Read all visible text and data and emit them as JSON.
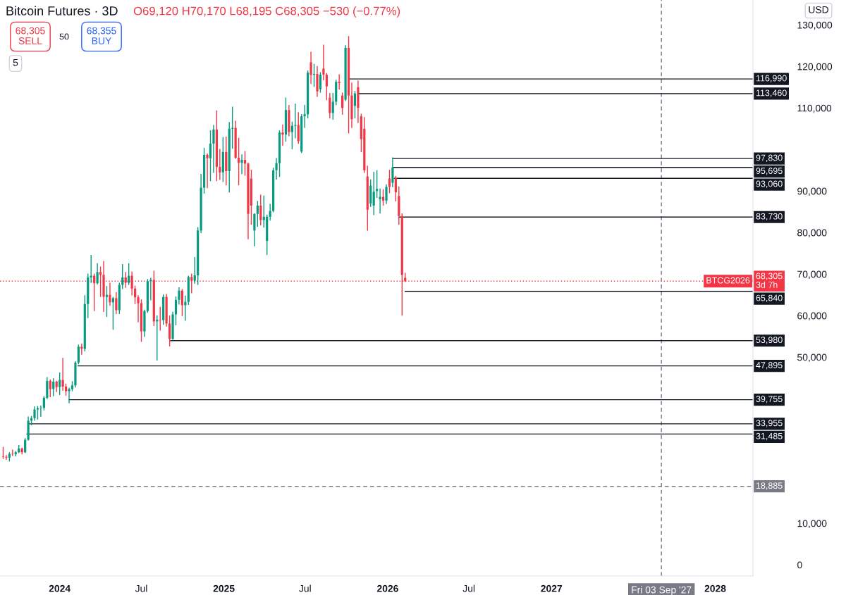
{
  "chart_data": {
    "type": "candlestick",
    "title": "Bitcoin Futures · 3D",
    "subtitle": "O69,120 H70,170 L68,195 C68,305 −530 (−0.77%)",
    "xlim": [
      "2023-08-21",
      "2028-03-25"
    ],
    "xticks": [
      {
        "value": "2024-01-01",
        "label": "2024"
      },
      {
        "value": "2024-07-01",
        "label": "Jul"
      },
      {
        "value": "2025-01-01",
        "label": "2025"
      },
      {
        "value": "2025-07-01",
        "label": "Jul"
      },
      {
        "value": "2026-01-01",
        "label": "2026"
      },
      {
        "value": "2026-07-01",
        "label": "Jul"
      },
      {
        "value": "2027-01-01",
        "label": "2027"
      },
      {
        "value": "2028-01-01",
        "label": "2028"
      }
    ],
    "ylim": [
      -2700,
      136000
    ],
    "yticks": [
      0,
      {
        "value": 10000,
        "label": "10,000"
      },
      {
        "value": 50000,
        "label": "50,000"
      },
      {
        "value": 60000,
        "label": "60,000"
      },
      {
        "value": 70000,
        "label": "70,000"
      },
      {
        "value": 80000,
        "label": "80,000"
      },
      {
        "value": 90000,
        "label": "90,000"
      },
      {
        "value": 110000,
        "label": "110,000"
      },
      {
        "value": 120000,
        "label": "120,000"
      },
      {
        "value": 130000,
        "label": "130,000"
      }
    ],
    "series": [
      {
        "x": [
          "2023-08-28",
          "2023-09-04",
          "2023-09-11",
          "2023-09-18",
          "2023-09-25",
          "2023-10-02",
          "2023-10-09",
          "2023-10-16",
          "2023-10-23",
          "2023-10-30",
          "2023-11-06",
          "2023-11-13",
          "2023-11-20",
          "2023-11-27",
          "2023-12-04",
          "2023-12-11",
          "2023-12-18",
          "2023-12-25",
          "2024-01-01",
          "2024-01-08",
          "2024-01-15",
          "2024-01-22",
          "2024-01-29",
          "2024-02-05",
          "2024-02-12",
          "2024-02-19",
          "2024-02-26",
          "2024-03-04",
          "2024-03-11",
          "2024-03-18",
          "2024-03-25",
          "2024-04-01",
          "2024-04-08",
          "2024-04-15",
          "2024-04-22",
          "2024-04-29",
          "2024-05-06",
          "2024-05-13",
          "2024-05-20",
          "2024-05-27",
          "2024-06-03",
          "2024-06-10",
          "2024-06-17",
          "2024-06-24",
          "2024-07-01",
          "2024-07-08",
          "2024-07-15",
          "2024-07-22",
          "2024-07-29",
          "2024-08-05",
          "2024-08-12",
          "2024-08-19",
          "2024-08-26",
          "2024-09-02",
          "2024-09-09",
          "2024-09-16",
          "2024-09-23",
          "2024-09-30",
          "2024-10-07",
          "2024-10-14",
          "2024-10-21",
          "2024-10-28",
          "2024-11-04",
          "2024-11-11",
          "2024-11-18",
          "2024-11-25",
          "2024-12-02",
          "2024-12-09",
          "2024-12-16",
          "2024-12-23",
          "2024-12-30",
          "2025-01-06",
          "2025-01-13",
          "2025-01-20",
          "2025-01-27",
          "2025-02-03",
          "2025-02-10",
          "2025-02-17",
          "2025-02-24",
          "2025-03-03",
          "2025-03-10",
          "2025-03-17",
          "2025-03-24",
          "2025-03-31",
          "2025-04-07",
          "2025-04-14",
          "2025-04-21",
          "2025-04-28",
          "2025-05-05",
          "2025-05-12",
          "2025-05-19",
          "2025-05-26",
          "2025-06-02",
          "2025-06-09",
          "2025-06-16",
          "2025-06-23",
          "2025-06-30",
          "2025-07-07",
          "2025-07-14",
          "2025-07-21",
          "2025-07-28",
          "2025-08-04",
          "2025-08-11",
          "2025-08-18",
          "2025-08-25",
          "2025-09-01",
          "2025-09-08",
          "2025-09-15",
          "2025-09-22",
          "2025-09-29",
          "2025-10-06",
          "2025-10-13",
          "2025-10-20",
          "2025-10-27",
          "2025-11-03",
          "2025-11-10",
          "2025-11-17",
          "2025-11-24",
          "2025-12-01",
          "2025-12-08",
          "2025-12-15",
          "2025-12-22",
          "2025-12-29",
          "2026-01-05",
          "2026-01-12",
          "2026-01-19",
          "2026-01-26",
          "2026-02-02",
          "2026-02-09"
        ],
        "ohlc": [
          [
            26100,
            28300,
            25600,
            26000
          ],
          [
            26000,
            26300,
            25400,
            25800
          ],
          [
            25800,
            27000,
            25000,
            26700
          ],
          [
            26700,
            27600,
            26300,
            26600
          ],
          [
            26600,
            27300,
            26200,
            27100
          ],
          [
            27100,
            28700,
            27000,
            28000
          ],
          [
            28000,
            28100,
            26700,
            27100
          ],
          [
            27100,
            30400,
            27000,
            30100
          ],
          [
            30100,
            35600,
            30000,
            34700
          ],
          [
            34700,
            35700,
            33700,
            35300
          ],
          [
            35300,
            38000,
            34800,
            37400
          ],
          [
            37400,
            38100,
            35100,
            37700
          ],
          [
            37700,
            38200,
            35800,
            37800
          ],
          [
            37800,
            40500,
            37300,
            40200
          ],
          [
            40200,
            45100,
            40000,
            44300
          ],
          [
            44300,
            44500,
            40500,
            42300
          ],
          [
            42300,
            44800,
            40700,
            44100
          ],
          [
            44100,
            44200,
            41700,
            42800
          ],
          [
            42800,
            46200,
            41000,
            44500
          ],
          [
            44500,
            49700,
            42000,
            42900
          ],
          [
            42900,
            43500,
            40800,
            41800
          ],
          [
            41800,
            42500,
            39000,
            42300
          ],
          [
            42300,
            44100,
            41900,
            43200
          ],
          [
            43200,
            48900,
            42800,
            48700
          ],
          [
            48700,
            52900,
            48400,
            52500
          ],
          [
            52500,
            53200,
            50700,
            52000
          ],
          [
            52000,
            64800,
            51500,
            62800
          ],
          [
            62800,
            70000,
            59500,
            69200
          ],
          [
            69200,
            74500,
            68000,
            69600
          ],
          [
            69600,
            70000,
            61200,
            67800
          ],
          [
            67800,
            72500,
            67600,
            70500
          ],
          [
            70500,
            71700,
            64600,
            69800
          ],
          [
            69800,
            73000,
            61000,
            64500
          ],
          [
            64500,
            67000,
            59800,
            65000
          ],
          [
            65000,
            67800,
            62500,
            63200
          ],
          [
            63200,
            64400,
            56700,
            64200
          ],
          [
            64200,
            65500,
            60500,
            61300
          ],
          [
            61300,
            67800,
            60500,
            67400
          ],
          [
            67400,
            72300,
            66500,
            69200
          ],
          [
            69200,
            70400,
            66800,
            67900
          ],
          [
            67900,
            72500,
            67500,
            69600
          ],
          [
            69600,
            70500,
            65000,
            66500
          ],
          [
            66500,
            67100,
            62900,
            64400
          ],
          [
            64400,
            64800,
            58500,
            63000
          ],
          [
            63000,
            63800,
            53800,
            56200
          ],
          [
            56200,
            61300,
            55000,
            61100
          ],
          [
            61100,
            68700,
            60800,
            68300
          ],
          [
            68300,
            69000,
            63800,
            68600
          ],
          [
            68600,
            70700,
            57600,
            58600
          ],
          [
            58600,
            59900,
            49300,
            59000
          ],
          [
            59000,
            62000,
            56500,
            58900
          ],
          [
            58900,
            65000,
            57900,
            64500
          ],
          [
            64500,
            65100,
            57500,
            58100
          ],
          [
            58100,
            59900,
            52700,
            54400
          ],
          [
            54400,
            60800,
            54300,
            60300
          ],
          [
            60300,
            64500,
            57800,
            63800
          ],
          [
            63800,
            66700,
            62800,
            66000
          ],
          [
            66000,
            66300,
            60000,
            62500
          ],
          [
            62500,
            64700,
            58900,
            63300
          ],
          [
            63300,
            69500,
            62700,
            69300
          ],
          [
            69300,
            70000,
            65500,
            68400
          ],
          [
            68400,
            74000,
            67800,
            69700
          ],
          [
            69700,
            81200,
            67500,
            80500
          ],
          [
            80500,
            94000,
            80000,
            90800
          ],
          [
            90800,
            100300,
            89500,
            98700
          ],
          [
            98700,
            98900,
            90800,
            97900
          ],
          [
            97900,
            104500,
            92500,
            101400
          ],
          [
            101400,
            105800,
            94500,
            104800
          ],
          [
            104800,
            109300,
            92500,
            95800
          ],
          [
            95800,
            100000,
            92800,
            94500
          ],
          [
            94500,
            102900,
            92300,
            99400
          ],
          [
            99400,
            103000,
            91500,
            94800
          ],
          [
            94800,
            106500,
            89800,
            105000
          ],
          [
            105000,
            110200,
            100300,
            105200
          ],
          [
            105200,
            106800,
            97900,
            98000
          ],
          [
            98000,
            102700,
            91500,
            96800
          ],
          [
            96800,
            98700,
            94200,
            97500
          ],
          [
            97500,
            99500,
            93800,
            96600
          ],
          [
            96600,
            96700,
            78500,
            84500
          ],
          [
            93000,
            95000,
            82000,
            86500
          ],
          [
            80500,
            84500,
            76800,
            84500
          ],
          [
            84500,
            87500,
            81500,
            86500
          ],
          [
            86500,
            89000,
            81800,
            83000
          ],
          [
            83000,
            88800,
            81300,
            83800
          ],
          [
            78000,
            84200,
            74700,
            83800
          ],
          [
            83800,
            86800,
            83000,
            85200
          ],
          [
            85200,
            95500,
            85000,
            95000
          ],
          [
            95000,
            97800,
            92900,
            96700
          ],
          [
            96700,
            104500,
            93500,
            104100
          ],
          [
            104100,
            105900,
            101000,
            103600
          ],
          [
            103600,
            112400,
            102000,
            109500
          ],
          [
            109500,
            110600,
            103300,
            104200
          ],
          [
            104200,
            106600,
            100200,
            105700
          ],
          [
            105700,
            110900,
            102800,
            105900
          ],
          [
            105900,
            108900,
            101500,
            102000
          ],
          [
            99500,
            108400,
            99300,
            108000
          ],
          [
            108000,
            110600,
            105300,
            108500
          ],
          [
            108500,
            118900,
            107600,
            118500
          ],
          [
            121000,
            123400,
            115900,
            118000
          ],
          [
            118000,
            120500,
            115200,
            118200
          ],
          [
            118200,
            120000,
            112800,
            114000
          ],
          [
            114500,
            118500,
            113800,
            118000
          ],
          [
            119500,
            125100,
            116800,
            118000
          ],
          [
            118000,
            118300,
            112000,
            115200
          ],
          [
            112500,
            113500,
            107600,
            108800
          ],
          [
            108800,
            113500,
            107300,
            111500
          ],
          [
            111500,
            116700,
            110800,
            116300
          ],
          [
            116300,
            118000,
            114600,
            116000
          ],
          [
            113000,
            113600,
            108500,
            110000
          ],
          [
            112000,
            125000,
            111800,
            124500
          ],
          [
            124500,
            127200,
            104000,
            113000
          ],
          [
            113000,
            116000,
            105300,
            107300
          ],
          [
            110500,
            114000,
            107600,
            113500
          ],
          [
            115000,
            116500,
            106500,
            110000
          ],
          [
            108000,
            108500,
            99500,
            102500
          ],
          [
            105000,
            107700,
            94500,
            95000
          ],
          [
            93500,
            96000,
            80600,
            85500
          ],
          [
            87000,
            92700,
            86300,
            91300
          ],
          [
            86500,
            94500,
            84300,
            89800
          ],
          [
            90000,
            94900,
            88500,
            90500
          ],
          [
            88000,
            90500,
            84700,
            88600
          ],
          [
            88600,
            90300,
            86600,
            87700
          ],
          [
            87700,
            91500,
            87000,
            91000
          ],
          [
            93000,
            95000,
            89600,
            91000
          ],
          [
            92000,
            98000,
            91000,
            95700
          ],
          [
            93100,
            93500,
            87600,
            89700
          ],
          [
            88800,
            91000,
            82000,
            84000
          ],
          [
            84000,
            84500,
            60100,
            69800
          ],
          [
            69120,
            70170,
            68195,
            68305
          ]
        ],
        "colors": [
          "#f23645",
          "#f23645",
          "#089981",
          "#f23645",
          "#089981",
          "#089981",
          "#f23645",
          "#089981",
          "#089981",
          "#089981",
          "#089981",
          "#089981",
          "#089981",
          "#089981",
          "#089981",
          "#f23645",
          "#089981",
          "#f23645",
          "#089981",
          "#f23645",
          "#f23645",
          "#089981",
          "#089981",
          "#089981",
          "#089981",
          "#f23645",
          "#089981",
          "#089981",
          "#089981",
          "#f23645",
          "#089981",
          "#f23645",
          "#f23645",
          "#089981",
          "#f23645",
          "#089981",
          "#f23645",
          "#089981",
          "#089981",
          "#f23645",
          "#089981",
          "#f23645",
          "#f23645",
          "#f23645",
          "#f23645",
          "#089981",
          "#089981",
          "#089981",
          "#f23645",
          "#089981",
          "#f23645",
          "#089981",
          "#f23645",
          "#f23645",
          "#089981",
          "#089981",
          "#089981",
          "#f23645",
          "#089981",
          "#089981",
          "#f23645",
          "#089981",
          "#089981",
          "#089981",
          "#089981",
          "#f23645",
          "#089981",
          "#089981",
          "#f23645",
          "#f23645",
          "#089981",
          "#f23645",
          "#089981",
          "#089981",
          "#f23645",
          "#f23645",
          "#089981",
          "#f23645",
          "#f23645",
          "#f23645",
          "#089981",
          "#089981",
          "#f23645",
          "#089981",
          "#089981",
          "#089981",
          "#089981",
          "#089981",
          "#089981",
          "#f23645",
          "#089981",
          "#f23645",
          "#089981",
          "#089981",
          "#f23645",
          "#089981",
          "#089981",
          "#089981",
          "#f23645",
          "#089981",
          "#f23645",
          "#089981",
          "#f23645",
          "#f23645",
          "#f23645",
          "#089981",
          "#089981",
          "#f23645",
          "#f23645",
          "#089981",
          "#f23645",
          "#f23645",
          "#089981",
          "#f23645",
          "#f23645",
          "#f23645",
          "#f23645",
          "#089981",
          "#089981",
          "#089981",
          "#089981",
          "#f23645",
          "#089981",
          "#f23645",
          "#089981",
          "#f23645",
          "#f23645",
          "#f23645",
          "#f23645"
        ]
      },
      {
        "type": "line",
        "x": [
          "2025-10-06",
          "2028-03-25"
        ],
        "values": [
          116990,
          116990
        ],
        "color": "#131722",
        "value_labels": [
          null,
          "116,990"
        ]
      },
      {
        "type": "line",
        "x": [
          "2025-10-27",
          "2028-03-25"
        ],
        "values": [
          113460,
          113460
        ],
        "color": "#131722",
        "value_labels": [
          null,
          "113,460"
        ]
      },
      {
        "type": "line",
        "x": [
          "2026-01-12",
          "2028-03-25"
        ],
        "values": [
          97830,
          97830
        ],
        "color": "#131722",
        "value_labels": [
          null,
          "97,830"
        ]
      },
      {
        "type": "line",
        "x": [
          "2026-01-14",
          "2028-03-25"
        ],
        "values": [
          95695,
          95695
        ],
        "color": "#131722",
        "value_labels": [
          null,
          "95,695"
        ]
      },
      {
        "type": "line",
        "x": [
          "2026-01-16",
          "2028-03-25"
        ],
        "values": [
          93060,
          93060
        ],
        "color": "#131722",
        "value_labels": [
          null,
          "93,060"
        ]
      },
      {
        "type": "line",
        "x": [
          "2026-01-27",
          "2028-03-25"
        ],
        "values": [
          83730,
          83730
        ],
        "color": "#131722",
        "value_labels": [
          null,
          "83,730"
        ]
      },
      {
        "type": "line",
        "x": [
          "2026-02-09",
          "2028-03-25"
        ],
        "values": [
          65840,
          65840
        ],
        "color": "#131722",
        "value_labels": [
          null,
          "65,840"
        ]
      },
      {
        "type": "line",
        "x": [
          "2024-09-04",
          "2028-03-25"
        ],
        "values": [
          53980,
          53980
        ],
        "color": "#131722",
        "value_labels": [
          null,
          "53,980"
        ]
      },
      {
        "type": "line",
        "x": [
          "2024-02-11",
          "2028-03-25"
        ],
        "values": [
          47895,
          47895
        ],
        "color": "#131722",
        "value_labels": [
          null,
          "47,895"
        ]
      },
      {
        "type": "line",
        "x": [
          "2024-01-22",
          "2028-03-25"
        ],
        "values": [
          39755,
          39755
        ],
        "color": "#131722",
        "value_labels": [
          null,
          "39,755"
        ]
      },
      {
        "type": "line",
        "x": [
          "2023-10-23",
          "2028-03-25"
        ],
        "values": [
          33955,
          33955
        ],
        "color": "#131722",
        "value_labels": [
          null,
          "33,955"
        ]
      },
      {
        "type": "line",
        "x": [
          "2023-10-20",
          "2028-03-25"
        ],
        "values": [
          31485,
          31485
        ],
        "color": "#131722",
        "value_labels": [
          null,
          "31,485"
        ]
      }
    ],
    "ref_lines": [
      {
        "axis": "y",
        "value": 68305,
        "label": "68,305\n3d 7h",
        "color": "#f23645",
        "line_style": "dotted"
      },
      {
        "axis": "y",
        "value": 18885,
        "label": "18,885",
        "color": "#787b86",
        "line_style": "dashed"
      },
      {
        "axis": "x",
        "value": "2027-09-03",
        "label": "Fri 03 Sep '27",
        "color": "#787b86",
        "line_style": "dashed"
      }
    ],
    "annotations": [
      "68,305\nSELL",
      "50",
      "68,355\nBUY",
      "5",
      "USD",
      {
        "text": "BTCG2026",
        "x": "2028-03-25",
        "y": 68305
      }
    ]
  }
}
